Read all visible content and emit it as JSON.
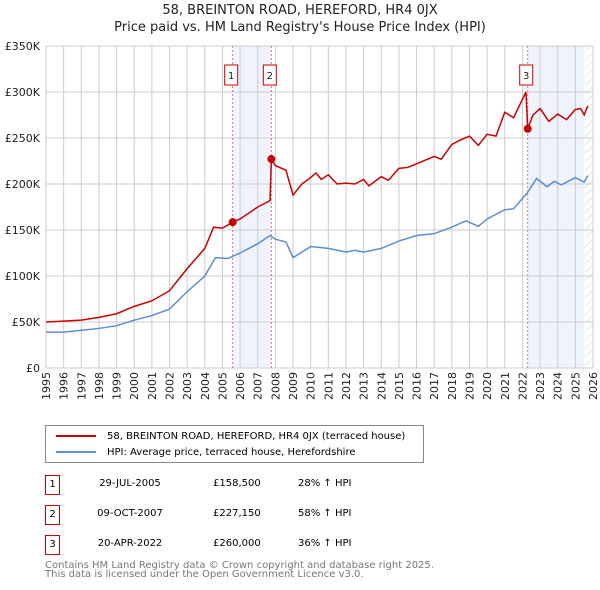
{
  "chart_data": {
    "type": "line",
    "title": "58, BREINTON ROAD, HEREFORD, HR4 0JX",
    "subtitle": "Price paid vs. HM Land Registry's House Price Index (HPI)",
    "xlabel": "",
    "ylabel": "",
    "xlim": [
      1995,
      2026
    ],
    "ylim": [
      0,
      350000
    ],
    "yticks": [
      0,
      50000,
      100000,
      150000,
      200000,
      250000,
      300000,
      350000
    ],
    "ytick_labels": [
      "£0",
      "£50K",
      "£100K",
      "£150K",
      "£200K",
      "£250K",
      "£300K",
      "£350K"
    ],
    "xticks": [
      "1995",
      "1996",
      "1997",
      "1998",
      "1999",
      "2000",
      "2001",
      "2002",
      "2003",
      "2004",
      "2005",
      "2006",
      "2007",
      "2008",
      "2009",
      "2010",
      "2011",
      "2012",
      "2013",
      "2014",
      "2015",
      "2016",
      "2017",
      "2018",
      "2019",
      "2020",
      "2021",
      "2022",
      "2023",
      "2024",
      "2025",
      "2026"
    ],
    "grid": true,
    "series": [
      {
        "name": "58, BREINTON ROAD, HEREFORD, HR4 0JX (terraced house)",
        "color": "#cc0000",
        "x": [
          1995,
          1996,
          1997,
          1998,
          1999,
          2000,
          2001,
          2002,
          2003,
          2004,
          2004.5,
          2005,
          2005.58,
          2006,
          2007,
          2007.7,
          2007.77,
          2008,
          2008.6,
          2009,
          2009.5,
          2010,
          2010.3,
          2010.6,
          2011,
          2011.5,
          2012,
          2012.5,
          2013,
          2013.3,
          2014,
          2014.4,
          2015,
          2015.5,
          2016,
          2017,
          2017.4,
          2018,
          2018.5,
          2019,
          2019.5,
          2020,
          2020.5,
          2021,
          2021.5,
          2022,
          2022.2,
          2022.3,
          2022.6,
          2023,
          2023.5,
          2024,
          2024.5,
          2025,
          2025.3,
          2025.5,
          2025.7
        ],
        "values": [
          50000,
          51000,
          52000,
          55000,
          59000,
          67000,
          73000,
          84000,
          108000,
          130000,
          153000,
          152000,
          158500,
          162000,
          175000,
          182000,
          227150,
          220000,
          215000,
          188000,
          200000,
          207000,
          212000,
          205000,
          210000,
          200000,
          201000,
          200000,
          205000,
          198000,
          208000,
          204000,
          217000,
          218000,
          222000,
          230000,
          227000,
          243000,
          248000,
          252000,
          242000,
          254000,
          252000,
          278000,
          272000,
          292000,
          300000,
          260000,
          275000,
          282000,
          268000,
          276000,
          270000,
          281000,
          282000,
          275000,
          285000
        ]
      },
      {
        "name": "HPI: Average price, terraced house, Herefordshire",
        "color": "#5b8fd0",
        "x": [
          1995,
          1996,
          1997,
          1998,
          1999,
          2000,
          2001,
          2002,
          2003,
          2004,
          2004.6,
          2005.3,
          2006,
          2007,
          2007.7,
          2008,
          2008.6,
          2009,
          2009.5,
          2010,
          2011,
          2012,
          2012.5,
          2013,
          2014,
          2015,
          2016,
          2017,
          2018,
          2018.8,
          2019.5,
          2020,
          2021,
          2021.5,
          2022.3,
          2022.8,
          2023.4,
          2023.8,
          2024.2,
          2025,
          2025.5,
          2025.7
        ],
        "values": [
          39000,
          39000,
          41000,
          43000,
          46000,
          52000,
          57000,
          64000,
          83000,
          100000,
          120000,
          119000,
          125000,
          135000,
          144000,
          140000,
          137000,
          120000,
          126000,
          132000,
          130000,
          126000,
          128000,
          126000,
          130000,
          138000,
          144000,
          146000,
          153000,
          160000,
          154000,
          162000,
          172000,
          173000,
          191000,
          206000,
          197000,
          203000,
          199000,
          207000,
          202000,
          209000
        ]
      }
    ],
    "sales": [
      {
        "label": "1",
        "x": 2005.58,
        "value": 158500
      },
      {
        "label": "2",
        "x": 2007.77,
        "value": 227150
      },
      {
        "label": "3",
        "x": 2022.3,
        "value": 260000
      }
    ],
    "shaded_ranges": [
      [
        2005.58,
        2007.77
      ],
      [
        2022.3,
        2025.5
      ]
    ],
    "hatched_from": 2025.55,
    "legend_position": "below"
  },
  "table": [
    {
      "num": "1",
      "date": "29-JUL-2005",
      "price": "£158,500",
      "hpi": "28% ↑ HPI"
    },
    {
      "num": "2",
      "date": "09-OCT-2007",
      "price": "£227,150",
      "hpi": "58% ↑ HPI"
    },
    {
      "num": "3",
      "date": "20-APR-2022",
      "price": "£260,000",
      "hpi": "36% ↑ HPI"
    }
  ],
  "footer": {
    "line1": "Contains HM Land Registry data © Crown copyright and database right 2025.",
    "line2": "This data is licensed under the Open Government Licence v3.0."
  }
}
